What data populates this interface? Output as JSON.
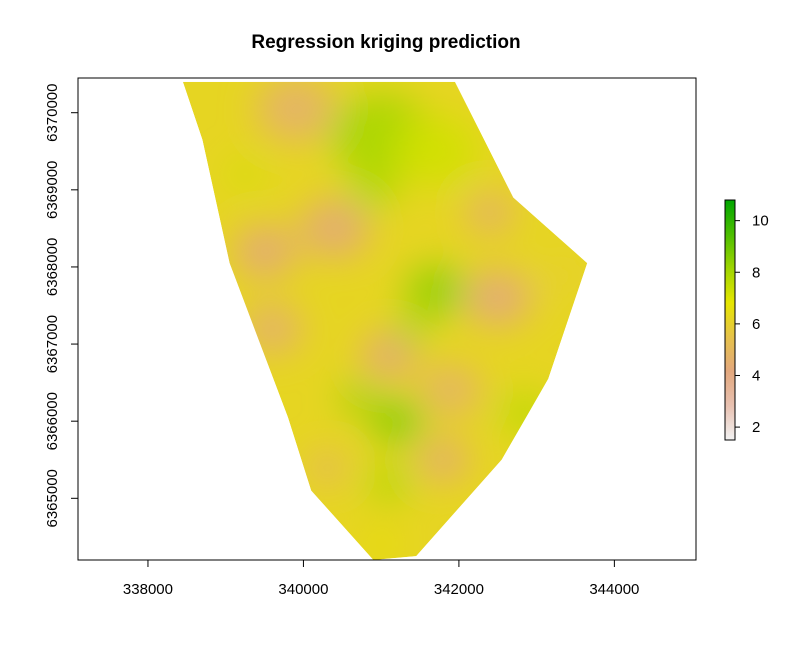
{
  "chart_data": {
    "type": "heatmap",
    "title": "Regression kriging prediction",
    "xlabel": "",
    "ylabel": "",
    "xlim": [
      337100,
      345050
    ],
    "ylim": [
      6364200,
      6370450
    ],
    "x_ticks": [
      338000,
      340000,
      342000,
      344000
    ],
    "x_tick_labels": [
      "338000",
      "340000",
      "342000",
      "344000"
    ],
    "y_ticks": [
      6365000,
      6366000,
      6367000,
      6368000,
      6369000,
      6370000
    ],
    "y_tick_labels": [
      "6365000",
      "6366000",
      "6367000",
      "6368000",
      "6369000",
      "6370000"
    ],
    "legend": {
      "placement": "right",
      "min": 1.5,
      "max": 10.8,
      "ticks": [
        2,
        4,
        6,
        8,
        10
      ],
      "tick_labels": [
        "2",
        "4",
        "6",
        "8",
        "10"
      ],
      "colors": [
        "#F2F2F2",
        "#E8C1B1",
        "#E3A87E",
        "#E6C24A",
        "#E6E600",
        "#9FD500",
        "#4CBE00",
        "#00A600"
      ]
    },
    "boundary": [
      [
        338450,
        6370400
      ],
      [
        341950,
        6370400
      ],
      [
        342700,
        6368900
      ],
      [
        343650,
        6368050
      ],
      [
        343150,
        6366550
      ],
      [
        342550,
        6365500
      ],
      [
        341450,
        6364250
      ],
      [
        340900,
        6364200
      ],
      [
        340100,
        6365100
      ],
      [
        339800,
        6366050
      ],
      [
        339050,
        6368050
      ],
      [
        338700,
        6369650
      ]
    ],
    "regions": [
      {
        "x": 341000,
        "y": 6369700,
        "r": 650,
        "value": 8.0
      },
      {
        "x": 341700,
        "y": 6369500,
        "r": 550,
        "value": 7.2
      },
      {
        "x": 340900,
        "y": 6369000,
        "r": 300,
        "value": 7.8
      },
      {
        "x": 339900,
        "y": 6370050,
        "r": 500,
        "value": 4.6
      },
      {
        "x": 340400,
        "y": 6368500,
        "r": 450,
        "value": 4.3
      },
      {
        "x": 339500,
        "y": 6368200,
        "r": 400,
        "value": 4.2
      },
      {
        "x": 339600,
        "y": 6367200,
        "r": 380,
        "value": 4.5
      },
      {
        "x": 341100,
        "y": 6366850,
        "r": 350,
        "value": 4.2
      },
      {
        "x": 342500,
        "y": 6367600,
        "r": 420,
        "value": 4.1
      },
      {
        "x": 342400,
        "y": 6368700,
        "r": 300,
        "value": 4.4
      },
      {
        "x": 341900,
        "y": 6366400,
        "r": 380,
        "value": 4.6
      },
      {
        "x": 341800,
        "y": 6365500,
        "r": 320,
        "value": 4.3
      },
      {
        "x": 340300,
        "y": 6365400,
        "r": 240,
        "value": 4.7
      },
      {
        "x": 341700,
        "y": 6367700,
        "r": 380,
        "value": 8.4
      },
      {
        "x": 341400,
        "y": 6367200,
        "r": 220,
        "value": 8.0
      },
      {
        "x": 341200,
        "y": 6366000,
        "r": 330,
        "value": 8.6
      },
      {
        "x": 340700,
        "y": 6366300,
        "r": 230,
        "value": 8.2
      },
      {
        "x": 341100,
        "y": 6365200,
        "r": 280,
        "value": 7.8
      },
      {
        "x": 342850,
        "y": 6366100,
        "r": 330,
        "value": 7.6
      },
      {
        "x": 339250,
        "y": 6369200,
        "r": 220,
        "value": 7.2
      },
      {
        "x": 343350,
        "y": 6367900,
        "r": 320,
        "value": 6.0
      },
      {
        "x": 341000,
        "y": 6364400,
        "r": 220,
        "value": 6.6
      }
    ]
  }
}
